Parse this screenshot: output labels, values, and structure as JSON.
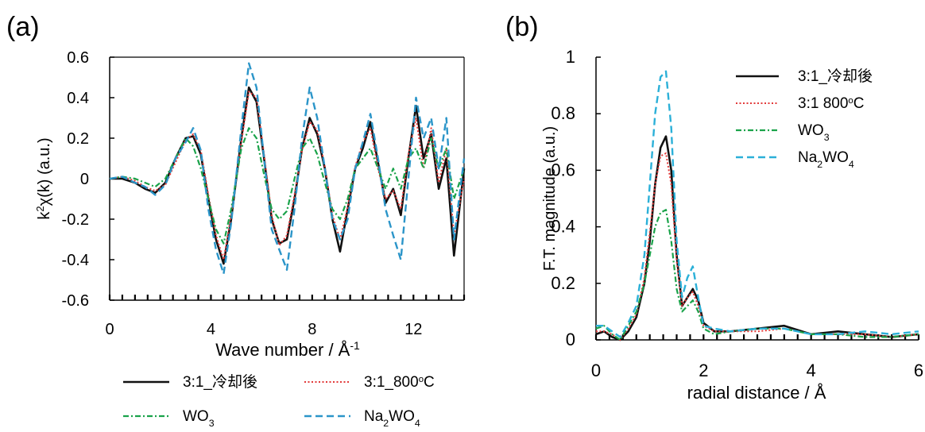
{
  "chart_data": [
    {
      "type": "line",
      "panel_label": "(a)",
      "xlabel": "Wave number / Å",
      "xlabel_sup": "-1",
      "ylabel": "k",
      "ylabel_sup": "2",
      "ylabel_rest": "χ(k) (a.u.)",
      "xlim": [
        0,
        14
      ],
      "ylim": [
        -0.6,
        0.6
      ],
      "xticks": [
        0,
        4,
        8,
        12
      ],
      "xtick_labels": [
        "0",
        "4",
        "8",
        "12"
      ],
      "yticks": [
        0.6,
        0.4,
        0.2,
        0,
        -0.2,
        -0.4,
        -0.6
      ],
      "ytick_labels": [
        "0.6",
        "0.4",
        "0.2",
        "0",
        "-0.2",
        "-0.4",
        "-0.6"
      ],
      "grid": false,
      "legend_position": "bottom",
      "series": [
        {
          "name": "3:1_冷却後",
          "sub": "",
          "color": "#111111",
          "dash": "",
          "width": 2.6,
          "x": [
            0,
            0.5,
            1,
            1.4,
            1.8,
            2.2,
            2.6,
            3.0,
            3.3,
            3.6,
            3.9,
            4.2,
            4.5,
            4.8,
            5.2,
            5.5,
            5.8,
            6.1,
            6.4,
            6.7,
            7.0,
            7.3,
            7.6,
            7.9,
            8.2,
            8.5,
            8.8,
            9.1,
            9.4,
            9.7,
            10.0,
            10.3,
            10.6,
            10.9,
            11.2,
            11.5,
            11.8,
            12.1,
            12.4,
            12.7,
            13.0,
            13.3,
            13.6,
            14.0
          ],
          "y": [
            0,
            0.0,
            -0.02,
            -0.05,
            -0.07,
            -0.02,
            0.1,
            0.2,
            0.21,
            0.12,
            -0.1,
            -0.3,
            -0.42,
            -0.2,
            0.2,
            0.45,
            0.38,
            0.1,
            -0.2,
            -0.32,
            -0.3,
            -0.1,
            0.15,
            0.3,
            0.22,
            0.05,
            -0.2,
            -0.36,
            -0.15,
            0.05,
            0.15,
            0.28,
            0.08,
            -0.12,
            -0.05,
            -0.18,
            0.1,
            0.36,
            0.1,
            0.22,
            -0.05,
            0.1,
            -0.38,
            0.05
          ]
        },
        {
          "name": "3:1_800",
          "sub": "",
          "suffix_sup": "o",
          "suffix": "C",
          "color": "#e23a3a",
          "dash": "2,2.5",
          "width": 2,
          "x": [
            0,
            0.5,
            1,
            1.4,
            1.8,
            2.2,
            2.6,
            3.0,
            3.3,
            3.6,
            3.9,
            4.2,
            4.5,
            4.8,
            5.2,
            5.5,
            5.8,
            6.1,
            6.4,
            6.7,
            7.0,
            7.3,
            7.6,
            7.9,
            8.2,
            8.5,
            8.8,
            9.1,
            9.4,
            9.7,
            10.0,
            10.3,
            10.6,
            10.9,
            11.2,
            11.5,
            11.8,
            12.1,
            12.4,
            12.7,
            13.0,
            13.3,
            13.6,
            14.0
          ],
          "y": [
            0,
            0.01,
            -0.01,
            -0.04,
            -0.06,
            -0.03,
            0.08,
            0.19,
            0.22,
            0.14,
            -0.08,
            -0.28,
            -0.4,
            -0.18,
            0.18,
            0.43,
            0.4,
            0.12,
            -0.18,
            -0.33,
            -0.28,
            -0.08,
            0.14,
            0.28,
            0.24,
            0.06,
            -0.18,
            -0.3,
            -0.14,
            0.06,
            0.18,
            0.25,
            0.05,
            -0.1,
            -0.06,
            -0.15,
            0.12,
            0.3,
            0.05,
            0.25,
            -0.02,
            0.15,
            -0.28,
            0.0
          ]
        },
        {
          "name": "WO",
          "sub": "3",
          "color": "#1aa34a",
          "dash": "7,3,2,3",
          "width": 2.2,
          "x": [
            0,
            0.5,
            1,
            1.4,
            1.8,
            2.2,
            2.6,
            3.0,
            3.3,
            3.6,
            3.9,
            4.2,
            4.5,
            4.8,
            5.2,
            5.5,
            5.8,
            6.1,
            6.4,
            6.7,
            7.0,
            7.3,
            7.6,
            7.9,
            8.2,
            8.5,
            8.8,
            9.1,
            9.4,
            9.7,
            10.0,
            10.3,
            10.6,
            10.9,
            11.2,
            11.5,
            11.8,
            12.1,
            12.4,
            12.7,
            13.0,
            13.3,
            13.6,
            14.0
          ],
          "y": [
            0,
            0.01,
            0.0,
            -0.02,
            -0.04,
            0.0,
            0.1,
            0.2,
            0.16,
            0.05,
            -0.1,
            -0.25,
            -0.32,
            -0.15,
            0.15,
            0.25,
            0.2,
            0.02,
            -0.15,
            -0.2,
            -0.16,
            0.0,
            0.15,
            0.2,
            0.12,
            -0.02,
            -0.15,
            -0.2,
            -0.1,
            0.05,
            0.1,
            0.15,
            0.05,
            -0.05,
            0.05,
            -0.05,
            0.1,
            0.15,
            0.05,
            0.2,
            0.05,
            0.15,
            -0.1,
            0.05
          ]
        },
        {
          "name": "Na",
          "sub": "2",
          "tail": "WO",
          "tail_sub": "4",
          "color": "#2b95c9",
          "dash": "9,5",
          "width": 2.4,
          "x": [
            0,
            0.5,
            1,
            1.4,
            1.8,
            2.2,
            2.6,
            3.0,
            3.3,
            3.6,
            3.9,
            4.2,
            4.5,
            4.8,
            5.2,
            5.5,
            5.8,
            6.1,
            6.4,
            6.7,
            7.0,
            7.3,
            7.6,
            7.9,
            8.2,
            8.5,
            8.8,
            9.1,
            9.4,
            9.7,
            10.0,
            10.3,
            10.6,
            10.9,
            11.2,
            11.5,
            11.8,
            12.1,
            12.4,
            12.7,
            13.0,
            13.3,
            13.6,
            14.0
          ],
          "y": [
            0,
            0.01,
            -0.02,
            -0.04,
            -0.08,
            -0.03,
            0.1,
            0.18,
            0.25,
            0.14,
            -0.15,
            -0.35,
            -0.47,
            -0.22,
            0.25,
            0.57,
            0.45,
            0.1,
            -0.25,
            -0.35,
            -0.45,
            -0.15,
            0.2,
            0.45,
            0.3,
            0.05,
            -0.2,
            -0.3,
            -0.2,
            0.05,
            0.18,
            0.32,
            0.1,
            -0.15,
            -0.28,
            -0.4,
            0.0,
            0.4,
            0.2,
            0.3,
            0.05,
            0.3,
            -0.3,
            0.1
          ]
        }
      ]
    },
    {
      "type": "line",
      "panel_label": "(b)",
      "xlabel": "radial distance / Å",
      "ylabel": "F.T. magnitude (a.u.)",
      "xlim": [
        0,
        6
      ],
      "ylim": [
        0,
        1
      ],
      "xticks": [
        0,
        2,
        4,
        6
      ],
      "xtick_labels": [
        "0",
        "2",
        "4",
        "6"
      ],
      "yticks": [
        1,
        0.8,
        0.6,
        0.4,
        0.2,
        0
      ],
      "ytick_labels": [
        "1",
        "0.8",
        "0.6",
        "0.4",
        "0.2",
        "0"
      ],
      "grid": false,
      "legend_position": "top-right",
      "series": [
        {
          "name": "3:1_冷却後",
          "sub": "",
          "color": "#111111",
          "dash": "",
          "width": 2.6,
          "x": [
            0,
            0.15,
            0.3,
            0.45,
            0.6,
            0.75,
            0.9,
            1.0,
            1.1,
            1.2,
            1.3,
            1.4,
            1.5,
            1.6,
            1.7,
            1.8,
            1.9,
            2.0,
            2.2,
            2.5,
            3.0,
            3.5,
            4.0,
            4.5,
            5.0,
            5.5,
            6.0
          ],
          "y": [
            0.02,
            0.03,
            0.01,
            0.0,
            0.03,
            0.08,
            0.2,
            0.35,
            0.55,
            0.68,
            0.72,
            0.6,
            0.3,
            0.12,
            0.15,
            0.18,
            0.14,
            0.06,
            0.03,
            0.03,
            0.04,
            0.05,
            0.02,
            0.03,
            0.02,
            0.01,
            0.02
          ]
        },
        {
          "name": "3:1 800",
          "sub": "",
          "suffix_sup": "o",
          "suffix": "C",
          "color": "#e23a3a",
          "dash": "2,2.5",
          "width": 2,
          "x": [
            0,
            0.15,
            0.3,
            0.45,
            0.6,
            0.75,
            0.9,
            1.0,
            1.1,
            1.2,
            1.3,
            1.4,
            1.5,
            1.6,
            1.7,
            1.8,
            1.9,
            2.0,
            2.2,
            2.5,
            3.0,
            3.5,
            4.0,
            4.5,
            5.0,
            5.5,
            6.0
          ],
          "y": [
            0.03,
            0.03,
            0.02,
            0.0,
            0.04,
            0.09,
            0.22,
            0.38,
            0.55,
            0.65,
            0.66,
            0.55,
            0.28,
            0.12,
            0.15,
            0.17,
            0.12,
            0.05,
            0.03,
            0.03,
            0.03,
            0.04,
            0.02,
            0.02,
            0.02,
            0.01,
            0.02
          ]
        },
        {
          "name": "WO",
          "sub": "3",
          "color": "#1aa34a",
          "dash": "7,3,2,3",
          "width": 2.2,
          "x": [
            0,
            0.15,
            0.3,
            0.45,
            0.6,
            0.75,
            0.9,
            1.0,
            1.1,
            1.2,
            1.3,
            1.4,
            1.5,
            1.6,
            1.7,
            1.8,
            1.9,
            2.0,
            2.2,
            2.5,
            3.0,
            3.5,
            4.0,
            4.5,
            5.0,
            5.5,
            6.0
          ],
          "y": [
            0.04,
            0.05,
            0.02,
            0.0,
            0.05,
            0.1,
            0.2,
            0.3,
            0.4,
            0.45,
            0.46,
            0.35,
            0.18,
            0.1,
            0.12,
            0.14,
            0.1,
            0.04,
            0.02,
            0.03,
            0.04,
            0.04,
            0.02,
            0.02,
            0.01,
            0.01,
            0.02
          ]
        },
        {
          "name": "Na",
          "sub": "2",
          "tail": "WO",
          "tail_sub": "4",
          "color": "#2bb0d8",
          "dash": "9,5",
          "width": 2.4,
          "x": [
            0,
            0.15,
            0.3,
            0.45,
            0.6,
            0.75,
            0.9,
            1.0,
            1.1,
            1.2,
            1.3,
            1.4,
            1.5,
            1.6,
            1.7,
            1.8,
            1.9,
            2.0,
            2.2,
            2.5,
            3.0,
            3.5,
            4.0,
            4.5,
            5.0,
            5.5,
            6.0
          ],
          "y": [
            0.05,
            0.05,
            0.03,
            0.01,
            0.06,
            0.12,
            0.3,
            0.55,
            0.8,
            0.93,
            0.95,
            0.75,
            0.35,
            0.15,
            0.22,
            0.26,
            0.15,
            0.05,
            0.04,
            0.03,
            0.04,
            0.04,
            0.02,
            0.02,
            0.03,
            0.02,
            0.03
          ]
        }
      ]
    }
  ]
}
